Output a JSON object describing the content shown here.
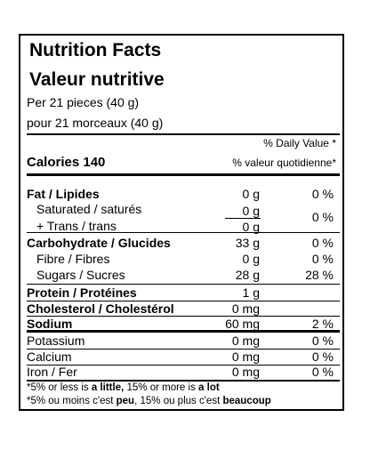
{
  "header": {
    "title_en": "Nutrition Facts",
    "title_fr": "Valeur nutritive",
    "serving_en": "Per 21 pieces (40 g)",
    "serving_fr": "pour  21 morceaux (40 g)"
  },
  "dv_header": {
    "en": "% Daily Value *",
    "fr": "% valeur quotidienne*"
  },
  "calories": {
    "label": "Calories 140"
  },
  "nutrients": {
    "fat": {
      "label": "Fat / Lipides",
      "amount": "0 g",
      "dv": "0 %"
    },
    "saturated": {
      "label": "Saturated / saturés",
      "amount": "0 g"
    },
    "trans": {
      "label": "+  Trans / trans",
      "amount": "0 g"
    },
    "sat_trans_dv": "0 %",
    "carbohydrate": {
      "label": "Carbohydrate / Glucides",
      "amount": "33 g",
      "dv": "0 %"
    },
    "fibre": {
      "label": "Fibre / Fibres",
      "amount": "0 g",
      "dv": "0 %"
    },
    "sugars": {
      "label": "Sugars / Sucres",
      "amount": "28 g",
      "dv": "28 %"
    },
    "protein": {
      "label": "Protein / Protéines",
      "amount": "1 g"
    },
    "cholesterol": {
      "label": "Cholesterol / Cholestérol",
      "amount": "0 mg"
    },
    "sodium": {
      "label": "Sodium",
      "amount": "60 mg",
      "dv": "2 %"
    },
    "potassium": {
      "label": "Potassium",
      "amount": "0 mg",
      "dv": "0 %"
    },
    "calcium": {
      "label": "Calcium",
      "amount": "0 mg",
      "dv": "0 %"
    },
    "iron": {
      "label": "Iron / Fer",
      "amount": "0 mg",
      "dv": "0 %"
    }
  },
  "footnote": {
    "en_pre": "*5% or less is ",
    "en_little": "a little,",
    "en_mid": " 15% or more is ",
    "en_lot": "a lot",
    "fr_pre": "*5% ou moins c'est ",
    "fr_peu": "peu",
    "fr_mid": ", 15% ou plus c'est ",
    "fr_beaucoup": "beaucoup"
  }
}
